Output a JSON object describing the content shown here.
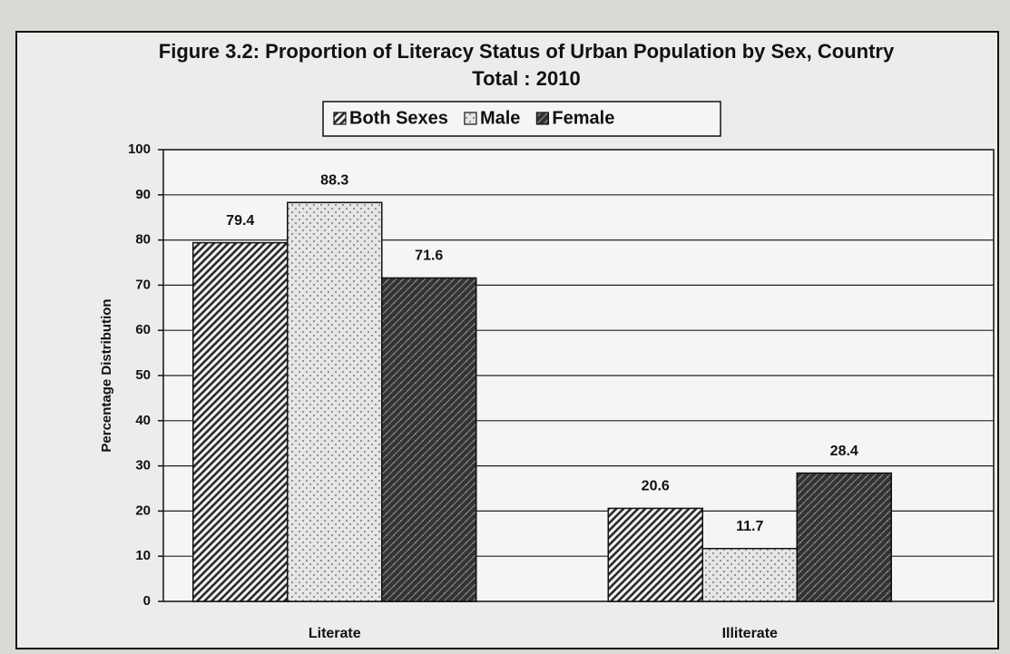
{
  "chart_data": {
    "type": "bar",
    "title": "Figure 3.2:  Proportion of Literacy Status of Urban Population by Sex, Country Total : 2010",
    "y_label": "Percentage Distribution",
    "categories": [
      "Literate",
      "Illiterate"
    ],
    "series": [
      {
        "name": "Both Sexes",
        "color": "#2b2b2b",
        "values": [
          79.4,
          20.6
        ]
      },
      {
        "name": "Male",
        "color": "#8a8a8a",
        "values": [
          88.3,
          11.7
        ]
      },
      {
        "name": "Female",
        "color": "#333333",
        "values": [
          71.6,
          28.4
        ]
      }
    ],
    "ylim": [
      0,
      100
    ],
    "yticks": [
      0,
      10,
      20,
      30,
      40,
      50,
      60,
      70,
      80,
      90,
      100
    ],
    "grid": true,
    "legend": "top"
  }
}
